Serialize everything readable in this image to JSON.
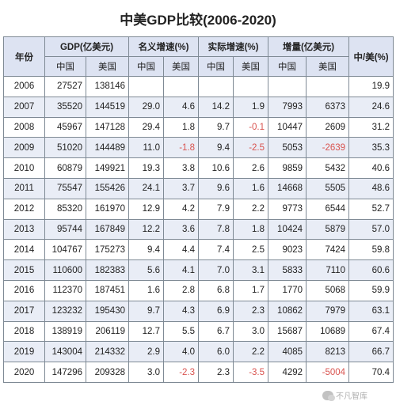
{
  "title": "中美GDP比较(2006-2020)",
  "columns": {
    "year": "年份",
    "gdp": "GDP(亿美元)",
    "nominal": "名义增速(%)",
    "real": "实际增速(%)",
    "increment": "增量(亿美元)",
    "ratio": "中/美(%)",
    "china": "中国",
    "usa": "美国"
  },
  "rows": [
    {
      "year": "2006",
      "gdp_cn": "27527",
      "gdp_us": "138146",
      "nom_cn": "",
      "nom_us": "",
      "real_cn": "",
      "real_us": "",
      "inc_cn": "",
      "inc_us": "",
      "ratio": "19.9"
    },
    {
      "year": "2007",
      "gdp_cn": "35520",
      "gdp_us": "144519",
      "nom_cn": "29.0",
      "nom_us": "4.6",
      "real_cn": "14.2",
      "real_us": "1.9",
      "inc_cn": "7993",
      "inc_us": "6373",
      "ratio": "24.6"
    },
    {
      "year": "2008",
      "gdp_cn": "45967",
      "gdp_us": "147128",
      "nom_cn": "29.4",
      "nom_us": "1.8",
      "real_cn": "9.7",
      "real_us": "-0.1",
      "inc_cn": "10447",
      "inc_us": "2609",
      "ratio": "31.2"
    },
    {
      "year": "2009",
      "gdp_cn": "51020",
      "gdp_us": "144489",
      "nom_cn": "11.0",
      "nom_us": "-1.8",
      "real_cn": "9.4",
      "real_us": "-2.5",
      "inc_cn": "5053",
      "inc_us": "-2639",
      "ratio": "35.3"
    },
    {
      "year": "2010",
      "gdp_cn": "60879",
      "gdp_us": "149921",
      "nom_cn": "19.3",
      "nom_us": "3.8",
      "real_cn": "10.6",
      "real_us": "2.6",
      "inc_cn": "9859",
      "inc_us": "5432",
      "ratio": "40.6"
    },
    {
      "year": "2011",
      "gdp_cn": "75547",
      "gdp_us": "155426",
      "nom_cn": "24.1",
      "nom_us": "3.7",
      "real_cn": "9.6",
      "real_us": "1.6",
      "inc_cn": "14668",
      "inc_us": "5505",
      "ratio": "48.6"
    },
    {
      "year": "2012",
      "gdp_cn": "85320",
      "gdp_us": "161970",
      "nom_cn": "12.9",
      "nom_us": "4.2",
      "real_cn": "7.9",
      "real_us": "2.2",
      "inc_cn": "9773",
      "inc_us": "6544",
      "ratio": "52.7"
    },
    {
      "year": "2013",
      "gdp_cn": "95744",
      "gdp_us": "167849",
      "nom_cn": "12.2",
      "nom_us": "3.6",
      "real_cn": "7.8",
      "real_us": "1.8",
      "inc_cn": "10424",
      "inc_us": "5879",
      "ratio": "57.0"
    },
    {
      "year": "2014",
      "gdp_cn": "104767",
      "gdp_us": "175273",
      "nom_cn": "9.4",
      "nom_us": "4.4",
      "real_cn": "7.4",
      "real_us": "2.5",
      "inc_cn": "9023",
      "inc_us": "7424",
      "ratio": "59.8"
    },
    {
      "year": "2015",
      "gdp_cn": "110600",
      "gdp_us": "182383",
      "nom_cn": "5.6",
      "nom_us": "4.1",
      "real_cn": "7.0",
      "real_us": "3.1",
      "inc_cn": "5833",
      "inc_us": "7110",
      "ratio": "60.6"
    },
    {
      "year": "2016",
      "gdp_cn": "112370",
      "gdp_us": "187451",
      "nom_cn": "1.6",
      "nom_us": "2.8",
      "real_cn": "6.8",
      "real_us": "1.7",
      "inc_cn": "1770",
      "inc_us": "5068",
      "ratio": "59.9"
    },
    {
      "year": "2017",
      "gdp_cn": "123232",
      "gdp_us": "195430",
      "nom_cn": "9.7",
      "nom_us": "4.3",
      "real_cn": "6.9",
      "real_us": "2.3",
      "inc_cn": "10862",
      "inc_us": "7979",
      "ratio": "63.1"
    },
    {
      "year": "2018",
      "gdp_cn": "138919",
      "gdp_us": "206119",
      "nom_cn": "12.7",
      "nom_us": "5.5",
      "real_cn": "6.7",
      "real_us": "3.0",
      "inc_cn": "15687",
      "inc_us": "10689",
      "ratio": "67.4"
    },
    {
      "year": "2019",
      "gdp_cn": "143004",
      "gdp_us": "214332",
      "nom_cn": "2.9",
      "nom_us": "4.0",
      "real_cn": "6.0",
      "real_us": "2.2",
      "inc_cn": "4085",
      "inc_us": "8213",
      "ratio": "66.7"
    },
    {
      "year": "2020",
      "gdp_cn": "147296",
      "gdp_us": "209328",
      "nom_cn": "3.0",
      "nom_us": "-2.3",
      "real_cn": "2.3",
      "real_us": "-3.5",
      "inc_cn": "4292",
      "inc_us": "-5004",
      "ratio": "70.4"
    }
  ],
  "watermark": {
    "text": "不凡智库",
    "icon": "wechat-icon"
  },
  "colors": {
    "header_bg": "#dde3f2",
    "stripe_bg": "#e9edf6",
    "negative": "#d9534f",
    "border": "#7f8a95"
  }
}
